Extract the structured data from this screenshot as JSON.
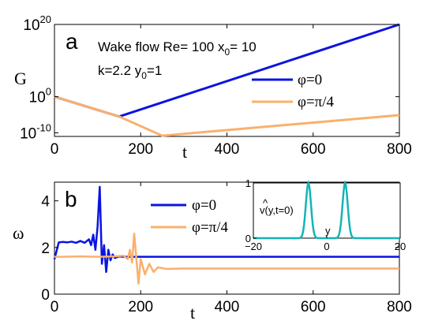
{
  "chart_data": [
    {
      "id": "a",
      "type": "line",
      "panel_label": "a",
      "annotation_line1": "Wake flow Re= 100 x",
      "annotation_line1_sub": "0",
      "annotation_line1_end": "= 10",
      "annotation_line2": "k=2.2 y",
      "annotation_line2_sub": "0",
      "annotation_line2_end": "=1",
      "xlabel": "t",
      "ylabel": "G",
      "xlim": [
        0,
        800
      ],
      "ylim_log10": [
        -11,
        20
      ],
      "y_scale": "log",
      "x_ticks": [
        "0",
        "200",
        "400",
        "600",
        "800"
      ],
      "y_ticks": [
        {
          "base": "10",
          "exp": "20"
        },
        {
          "base": "10",
          "exp": "0"
        },
        {
          "base": "10",
          "exp": "-10"
        }
      ],
      "legend_position": "right",
      "series": [
        {
          "name": "φ=0",
          "color": "#0a14e0",
          "x": [
            0,
            150,
            800
          ],
          "log10_y": [
            0,
            -5.5,
            20
          ]
        },
        {
          "name": "φ=π/4",
          "color": "#f9b06e",
          "x": [
            0,
            150,
            250,
            800
          ],
          "log10_y": [
            0,
            -5.5,
            -10.8,
            -5.1
          ]
        }
      ]
    },
    {
      "id": "b",
      "type": "line",
      "panel_label": "b",
      "xlabel": "t",
      "ylabel": "ω",
      "xlim": [
        0,
        800
      ],
      "ylim": [
        0,
        4.8
      ],
      "x_ticks": [
        "0",
        "200",
        "400",
        "600",
        "800"
      ],
      "y_ticks": [
        "0",
        "2",
        "4"
      ],
      "legend_position": "top-center",
      "series": [
        {
          "name": "φ=0",
          "color": "#0a14e0",
          "x": [
            0,
            10,
            20,
            30,
            40,
            50,
            60,
            70,
            80,
            85,
            90,
            95,
            100,
            105,
            110,
            115,
            120,
            125,
            130,
            135,
            140,
            150,
            160,
            180,
            800
          ],
          "y": [
            1.5,
            2.22,
            2.24,
            2.22,
            2.25,
            2.2,
            2.28,
            2.2,
            2.35,
            2.1,
            2.55,
            1.9,
            2.9,
            4.6,
            1.3,
            2.1,
            0.95,
            1.9,
            1.45,
            1.7,
            1.55,
            1.62,
            1.6,
            1.6,
            1.6
          ]
        },
        {
          "name": "φ=π/4",
          "color": "#f9b06e",
          "x": [
            0,
            20,
            60,
            100,
            140,
            160,
            170,
            175,
            180,
            185,
            190,
            195,
            200,
            210,
            220,
            230,
            240,
            260,
            300,
            800
          ],
          "y": [
            1.6,
            1.6,
            1.62,
            1.6,
            1.62,
            1.65,
            1.5,
            1.9,
            1.35,
            2.6,
            1.5,
            0.45,
            1.5,
            0.85,
            1.3,
            0.95,
            1.15,
            1.08,
            1.1,
            1.1
          ]
        }
      ]
    },
    {
      "id": "inset",
      "type": "line",
      "ylabel_hat": "^",
      "ylabel": "v(y,t=0)",
      "xlabel": "y",
      "xlim": [
        -20,
        20
      ],
      "ylim": [
        0,
        1
      ],
      "x_ticks": [
        "−20",
        "0",
        "20"
      ],
      "y_ticks": [
        "0",
        "1"
      ],
      "series": [
        {
          "color": "#14b4b4",
          "gaussian_centers": [
            -5,
            5
          ],
          "width": 1.0
        }
      ]
    }
  ]
}
